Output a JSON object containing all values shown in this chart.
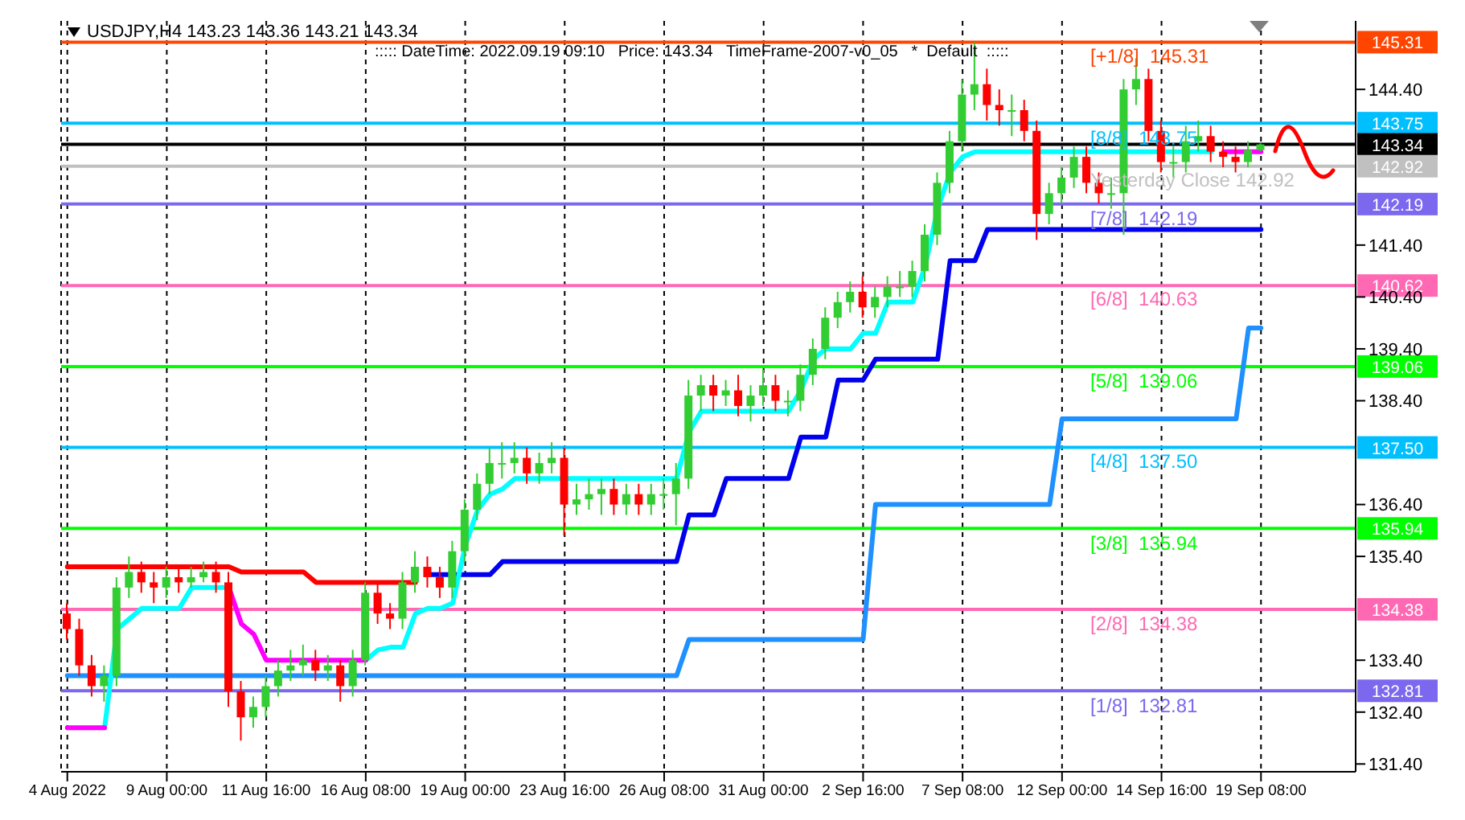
{
  "chart_data": {
    "type": "candlestick",
    "title": "USDJPY,H4  143.23 143.36 143.21 143.34",
    "annotations": [
      "::::: DateTime: 2022.09.19 09:10   Price: 143.34   TimeFrame-2007-v0_05   *  Default  :::::",
      {
        "text": "[+1/8]  145.31",
        "y": 145.31
      },
      {
        "text": "[8/8]  143.75",
        "y": 143.75
      },
      {
        "text": "Yesterday Close 142.92",
        "y": 142.92
      },
      {
        "text": "[7/8]  142.19",
        "y": 142.19
      },
      {
        "text": "[6/8]  140.63",
        "y": 140.63
      },
      {
        "text": "[5/8]  139.06",
        "y": 139.06
      },
      {
        "text": "[4/8]  137.50",
        "y": 137.5
      },
      {
        "text": "[3/8]  135.94",
        "y": 135.94
      },
      {
        "text": "[2/8]  134.38",
        "y": 134.38
      },
      {
        "text": "[1/8]  132.81",
        "y": 132.81
      }
    ],
    "categories": [
      "4 Aug 2022",
      null,
      null,
      null,
      null,
      null,
      null,
      null,
      "9 Aug 00:00",
      null,
      null,
      null,
      null,
      null,
      null,
      null,
      "11 Aug 16:00",
      null,
      null,
      null,
      null,
      null,
      null,
      null,
      "16 Aug 08:00",
      null,
      null,
      null,
      null,
      null,
      null,
      null,
      "19 Aug 00:00",
      null,
      null,
      null,
      null,
      null,
      null,
      null,
      "23 Aug 16:00",
      null,
      null,
      null,
      null,
      null,
      null,
      null,
      "26 Aug 08:00",
      null,
      null,
      null,
      null,
      null,
      null,
      null,
      "31 Aug 00:00",
      null,
      null,
      null,
      null,
      null,
      null,
      null,
      "2 Sep 16:00",
      null,
      null,
      null,
      null,
      null,
      null,
      null,
      "7 Sep 08:00",
      null,
      null,
      null,
      null,
      null,
      null,
      null,
      "12 Sep 00:00",
      null,
      null,
      null,
      null,
      null,
      null,
      null,
      "14 Sep 16:00",
      null,
      null,
      null,
      null,
      null,
      null,
      null,
      "19 Sep 08:00"
    ],
    "ohlc": [
      [
        134.3,
        134.5,
        133.8,
        134.0
      ],
      [
        134.0,
        134.2,
        133.1,
        133.3
      ],
      [
        133.3,
        133.5,
        132.7,
        132.9
      ],
      [
        132.9,
        133.3,
        132.6,
        133.1
      ],
      [
        133.1,
        135.0,
        132.9,
        134.8
      ],
      [
        134.8,
        135.4,
        134.6,
        135.1
      ],
      [
        135.1,
        135.3,
        134.7,
        134.9
      ],
      [
        134.9,
        135.1,
        134.5,
        134.8
      ],
      [
        134.8,
        135.2,
        134.6,
        135.0
      ],
      [
        135.0,
        135.2,
        134.7,
        134.9
      ],
      [
        134.9,
        135.2,
        134.8,
        135.0
      ],
      [
        135.0,
        135.3,
        134.9,
        135.1
      ],
      [
        135.1,
        135.3,
        134.7,
        134.9
      ],
      [
        134.9,
        135.1,
        132.5,
        132.8
      ],
      [
        132.8,
        133.0,
        131.85,
        132.3
      ],
      [
        132.3,
        132.7,
        132.1,
        132.5
      ],
      [
        132.5,
        133.1,
        132.3,
        132.9
      ],
      [
        132.9,
        133.4,
        132.7,
        133.2
      ],
      [
        133.2,
        133.6,
        133.0,
        133.3
      ],
      [
        133.3,
        133.7,
        133.1,
        133.4
      ],
      [
        133.4,
        133.6,
        133.0,
        133.2
      ],
      [
        133.2,
        133.5,
        133.0,
        133.3
      ],
      [
        133.3,
        133.4,
        132.6,
        132.9
      ],
      [
        132.9,
        133.6,
        132.7,
        133.4
      ],
      [
        133.4,
        134.9,
        133.3,
        134.7
      ],
      [
        134.7,
        134.9,
        134.1,
        134.3
      ],
      [
        134.3,
        134.5,
        134.0,
        134.2
      ],
      [
        134.2,
        135.1,
        134.0,
        134.9
      ],
      [
        134.9,
        135.5,
        134.7,
        135.2
      ],
      [
        135.2,
        135.4,
        134.8,
        135.0
      ],
      [
        135.0,
        135.2,
        134.6,
        134.8
      ],
      [
        134.8,
        135.7,
        134.6,
        135.5
      ],
      [
        135.5,
        136.5,
        135.3,
        136.3
      ],
      [
        136.3,
        137.0,
        136.1,
        136.8
      ],
      [
        136.8,
        137.5,
        136.6,
        137.2
      ],
      [
        137.2,
        137.6,
        136.9,
        137.2
      ],
      [
        137.2,
        137.6,
        137.0,
        137.3
      ],
      [
        137.3,
        137.5,
        136.8,
        137.0
      ],
      [
        137.0,
        137.4,
        136.8,
        137.2
      ],
      [
        137.2,
        137.6,
        137.0,
        137.3
      ],
      [
        137.3,
        137.5,
        135.8,
        136.4
      ],
      [
        136.4,
        136.8,
        136.2,
        136.5
      ],
      [
        136.5,
        136.9,
        136.3,
        136.6
      ],
      [
        136.6,
        136.9,
        136.2,
        136.7
      ],
      [
        136.7,
        136.9,
        136.2,
        136.4
      ],
      [
        136.4,
        136.8,
        136.2,
        136.6
      ],
      [
        136.6,
        136.8,
        136.2,
        136.4
      ],
      [
        136.4,
        136.8,
        136.2,
        136.6
      ],
      [
        136.6,
        136.9,
        136.3,
        136.6
      ],
      [
        136.6,
        137.2,
        136.0,
        136.9
      ],
      [
        136.9,
        138.8,
        136.7,
        138.5
      ],
      [
        138.5,
        138.9,
        138.2,
        138.7
      ],
      [
        138.7,
        138.9,
        138.2,
        138.5
      ],
      [
        138.5,
        138.8,
        138.3,
        138.6
      ],
      [
        138.6,
        138.9,
        138.1,
        138.3
      ],
      [
        138.3,
        138.7,
        138.0,
        138.5
      ],
      [
        138.5,
        139.0,
        138.3,
        138.7
      ],
      [
        138.7,
        138.9,
        138.2,
        138.4
      ],
      [
        138.4,
        138.6,
        138.1,
        138.4
      ],
      [
        138.4,
        139.1,
        138.2,
        138.9
      ],
      [
        138.9,
        139.6,
        138.7,
        139.4
      ],
      [
        139.4,
        140.2,
        139.2,
        140.0
      ],
      [
        140.0,
        140.5,
        139.8,
        140.3
      ],
      [
        140.3,
        140.7,
        140.1,
        140.5
      ],
      [
        140.5,
        140.8,
        140.0,
        140.2
      ],
      [
        140.2,
        140.6,
        140.0,
        140.4
      ],
      [
        140.4,
        140.8,
        140.2,
        140.6
      ],
      [
        140.6,
        140.9,
        140.4,
        140.6
      ],
      [
        140.6,
        141.1,
        140.4,
        140.9
      ],
      [
        140.9,
        141.8,
        140.7,
        141.6
      ],
      [
        141.6,
        142.8,
        141.4,
        142.6
      ],
      [
        142.6,
        143.6,
        142.4,
        143.4
      ],
      [
        143.4,
        144.6,
        143.2,
        144.3
      ],
      [
        144.3,
        145.3,
        144.0,
        144.5
      ],
      [
        144.5,
        144.8,
        143.8,
        144.1
      ],
      [
        144.1,
        144.4,
        143.7,
        144.0
      ],
      [
        144.0,
        144.3,
        143.5,
        144.0
      ],
      [
        144.0,
        144.2,
        143.4,
        143.6
      ],
      [
        143.6,
        143.8,
        141.5,
        142.0
      ],
      [
        142.0,
        142.6,
        141.8,
        142.4
      ],
      [
        142.4,
        142.9,
        142.2,
        142.7
      ],
      [
        142.7,
        143.3,
        142.5,
        143.1
      ],
      [
        143.1,
        143.3,
        142.4,
        142.6
      ],
      [
        142.6,
        142.8,
        142.2,
        142.4
      ],
      [
        142.4,
        142.7,
        142.1,
        142.4
      ],
      [
        142.4,
        144.6,
        141.6,
        144.4
      ],
      [
        144.4,
        145.0,
        144.1,
        144.6
      ],
      [
        144.6,
        144.8,
        143.4,
        143.6
      ],
      [
        143.6,
        143.8,
        142.8,
        143.0
      ],
      [
        143.0,
        143.3,
        142.7,
        143.0
      ],
      [
        143.0,
        143.7,
        142.8,
        143.4
      ],
      [
        143.4,
        143.8,
        143.2,
        143.5
      ],
      [
        143.5,
        143.7,
        143.0,
        143.2
      ],
      [
        143.2,
        143.4,
        142.9,
        143.1
      ],
      [
        143.1,
        143.3,
        142.8,
        143.0
      ],
      [
        143.0,
        143.4,
        142.9,
        143.23
      ],
      [
        143.23,
        143.36,
        143.21,
        143.34
      ]
    ],
    "series": [
      {
        "type": "line",
        "color": "#1e90ff",
        "values": [
          133.1,
          133.1,
          133.1,
          133.1,
          133.1,
          133.1,
          133.1,
          133.1,
          133.1,
          133.1,
          133.1,
          133.1,
          133.1,
          133.1,
          133.1,
          133.1,
          133.1,
          133.1,
          133.1,
          133.1,
          133.1,
          133.1,
          133.1,
          133.1,
          133.1,
          133.1,
          133.1,
          133.1,
          133.1,
          133.1,
          133.1,
          133.1,
          133.1,
          133.1,
          133.1,
          133.1,
          133.1,
          133.1,
          133.1,
          133.1,
          133.1,
          133.1,
          133.1,
          133.1,
          133.1,
          133.1,
          133.1,
          133.1,
          133.1,
          133.1,
          133.8,
          133.8,
          133.8,
          133.8,
          133.8,
          133.8,
          133.8,
          133.8,
          133.8,
          133.8,
          133.8,
          133.8,
          133.8,
          133.8,
          133.8,
          136.4,
          136.4,
          136.4,
          136.4,
          136.4,
          136.4,
          136.4,
          136.4,
          136.4,
          136.4,
          136.4,
          136.4,
          136.4,
          136.4,
          136.4,
          138.05,
          138.05,
          138.05,
          138.05,
          138.05,
          138.05,
          138.05,
          138.05,
          138.05,
          138.05,
          138.05,
          138.05,
          138.05,
          138.05,
          138.05,
          139.8,
          139.8
        ]
      },
      {
        "type": "line",
        "color": "#0000ee",
        "values": [
          null,
          null,
          null,
          null,
          null,
          null,
          null,
          null,
          null,
          null,
          null,
          null,
          null,
          null,
          null,
          null,
          null,
          null,
          null,
          null,
          null,
          null,
          null,
          null,
          null,
          null,
          null,
          null,
          null,
          135.05,
          135.05,
          135.05,
          135.05,
          135.05,
          135.05,
          135.3,
          135.3,
          135.3,
          135.3,
          135.3,
          135.3,
          135.3,
          135.3,
          135.3,
          135.3,
          135.3,
          135.3,
          135.3,
          135.3,
          135.3,
          136.2,
          136.2,
          136.2,
          136.9,
          136.9,
          136.9,
          136.9,
          136.9,
          136.9,
          137.7,
          137.7,
          137.7,
          138.8,
          138.8,
          138.8,
          139.2,
          139.2,
          139.2,
          139.2,
          139.2,
          139.2,
          141.1,
          141.1,
          141.1,
          141.7,
          141.7,
          141.7,
          141.7,
          141.7,
          141.7,
          141.7,
          141.7,
          141.7,
          141.7,
          141.7,
          141.7,
          141.7,
          141.7,
          141.7,
          141.7,
          141.7,
          141.7,
          141.7,
          141.7,
          141.7,
          141.7,
          141.7
        ]
      },
      {
        "type": "line",
        "color": "#ff0000",
        "values": [
          135.2,
          135.2,
          135.2,
          135.2,
          135.2,
          135.2,
          135.2,
          135.2,
          135.2,
          135.2,
          135.2,
          135.2,
          135.2,
          135.2,
          135.1,
          135.1,
          135.1,
          135.1,
          135.1,
          135.1,
          134.9,
          134.9,
          134.9,
          134.9,
          134.9,
          134.9,
          134.9,
          134.9,
          134.9,
          null,
          null,
          null,
          null,
          null,
          null,
          null,
          null,
          null,
          null,
          null,
          null,
          null,
          null,
          null,
          null,
          null,
          null,
          null,
          null,
          null,
          null,
          null,
          null,
          null,
          null,
          null,
          null,
          null,
          null,
          null,
          null,
          null,
          null,
          null,
          null,
          null,
          null,
          null,
          null,
          null,
          null,
          null,
          null,
          null,
          null,
          null,
          null,
          null,
          null,
          null,
          null,
          null,
          null,
          null,
          null,
          null,
          null,
          null,
          null,
          null,
          null,
          null,
          null,
          null,
          null,
          null,
          null
        ]
      },
      {
        "type": "line",
        "color": "#00ffff",
        "values": [
          null,
          null,
          null,
          132.1,
          134.0,
          134.2,
          134.4,
          134.4,
          134.4,
          134.4,
          134.8,
          134.8,
          134.8,
          134.8,
          null,
          null,
          null,
          null,
          null,
          null,
          null,
          null,
          null,
          null,
          133.4,
          133.6,
          133.65,
          133.65,
          134.3,
          134.4,
          134.4,
          134.5,
          135.6,
          136.3,
          136.6,
          136.7,
          136.9,
          136.9,
          136.9,
          136.9,
          136.9,
          136.9,
          136.9,
          136.9,
          136.9,
          136.9,
          136.9,
          136.9,
          136.9,
          136.9,
          137.8,
          138.2,
          138.2,
          138.2,
          138.2,
          138.2,
          138.2,
          138.2,
          138.2,
          138.6,
          139.2,
          139.4,
          139.4,
          139.4,
          139.7,
          139.7,
          140.3,
          140.3,
          140.3,
          141.0,
          142.1,
          142.8,
          143.1,
          143.2,
          143.2,
          143.2,
          143.2,
          143.2,
          143.2,
          143.2,
          143.2,
          143.2,
          143.2,
          143.2,
          143.2,
          143.2,
          143.2,
          143.2,
          143.2,
          143.2,
          143.2,
          143.2,
          143.2,
          null,
          null,
          null,
          null
        ]
      },
      {
        "type": "line",
        "color": "#ff00ff",
        "values": [
          132.1,
          132.1,
          132.1,
          132.1,
          null,
          null,
          null,
          null,
          null,
          null,
          null,
          null,
          null,
          134.8,
          134.1,
          133.9,
          133.4,
          133.4,
          133.4,
          133.4,
          133.4,
          133.4,
          133.4,
          133.4,
          133.4,
          null,
          null,
          null,
          null,
          null,
          null,
          null,
          null,
          null,
          null,
          null,
          null,
          null,
          null,
          null,
          null,
          null,
          null,
          null,
          null,
          null,
          null,
          null,
          null,
          null,
          null,
          null,
          null,
          null,
          null,
          null,
          null,
          null,
          null,
          null,
          null,
          null,
          null,
          null,
          null,
          null,
          null,
          null,
          null,
          null,
          null,
          null,
          null,
          null,
          null,
          null,
          null,
          null,
          null,
          null,
          null,
          null,
          null,
          null,
          null,
          null,
          null,
          null,
          null,
          null,
          null,
          null,
          null,
          143.2,
          143.2,
          143.2,
          143.2
        ]
      }
    ],
    "ylim": [
      131.25,
      145.72
    ],
    "yticks": [
      {
        "value": 131.4,
        "label": "131.40"
      },
      {
        "value": 132.4,
        "label": "132.40"
      },
      {
        "value": 133.4,
        "label": "133.40"
      },
      {
        "value": 135.4,
        "label": "135.40"
      },
      {
        "value": 136.4,
        "label": "136.40"
      },
      {
        "value": 138.4,
        "label": "138.40"
      },
      {
        "value": 139.4,
        "label": "139.40"
      },
      {
        "value": 140.4,
        "label": "140.40"
      },
      {
        "value": 141.4,
        "label": "141.40"
      },
      {
        "value": 144.4,
        "label": "144.40"
      }
    ],
    "ref_lines": [
      {
        "axis": "y",
        "value": 145.31,
        "label": "145.31",
        "color": "#ff4500"
      },
      {
        "axis": "y",
        "value": 143.75,
        "label": "143.75",
        "color": "#00bfff"
      },
      {
        "axis": "y",
        "value": 143.34,
        "label": "143.34",
        "color": "#000000"
      },
      {
        "axis": "y",
        "value": 142.92,
        "label": "142.92",
        "color": "#c0c0c0"
      },
      {
        "axis": "y",
        "value": 142.19,
        "label": "142.19",
        "color": "#7b68ee"
      },
      {
        "axis": "y",
        "value": 140.62,
        "label": "140.62",
        "color": "#ff69b4"
      },
      {
        "axis": "y",
        "value": 139.06,
        "label": "139.06",
        "color": "#00ff00"
      },
      {
        "axis": "y",
        "value": 137.5,
        "label": "137.50",
        "color": "#00bfff"
      },
      {
        "axis": "y",
        "value": 135.94,
        "label": "135.94",
        "color": "#00ff00"
      },
      {
        "axis": "y",
        "value": 134.38,
        "label": "134.38",
        "color": "#ff69b4"
      },
      {
        "axis": "y",
        "value": 132.81,
        "label": "132.81",
        "color": "#7b68ee"
      }
    ],
    "grid": "x",
    "legend": false,
    "marker": "none",
    "line_style": "solid"
  }
}
